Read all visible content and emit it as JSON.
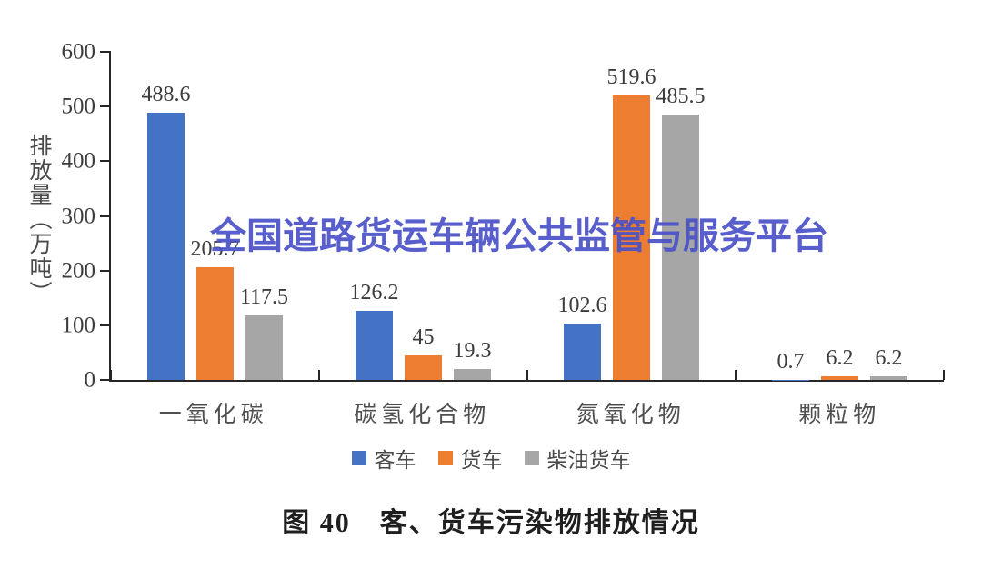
{
  "watermark": {
    "text": "全国道路货运车辆公共监管与服务平台",
    "color": "#4a52c8"
  },
  "caption": {
    "text": "图 40　客、货车污染物排放情况"
  },
  "chart_data": {
    "type": "bar",
    "title": "图 40 客、货车污染物排放情况",
    "categories": [
      "一氧化碳",
      "碳氢化合物",
      "氮氧化物",
      "颗粒物"
    ],
    "series": [
      {
        "name": "客车",
        "color": "#4473c5",
        "values": [
          488.6,
          126.2,
          102.6,
          0.7
        ],
        "labels": [
          "488.6",
          "126.2",
          "102.6",
          "0.7"
        ]
      },
      {
        "name": "货车",
        "color": "#ed7d31",
        "values": [
          205.7,
          45.0,
          519.6,
          6.2
        ],
        "labels": [
          "205.7",
          "45",
          "519.6",
          "6.2"
        ]
      },
      {
        "name": "柴油货车",
        "color": "#a6a6a6",
        "values": [
          117.5,
          19.3,
          485.5,
          6.2
        ],
        "labels": [
          "117.5",
          "19.3",
          "485.5",
          "6.2"
        ]
      }
    ],
    "xlabel": "",
    "ylabel": "排放量（万吨）",
    "ylim": [
      0,
      600
    ],
    "ytick_step": 100,
    "grid": false,
    "legend_position": "bottom",
    "axis_color": "#262626"
  }
}
